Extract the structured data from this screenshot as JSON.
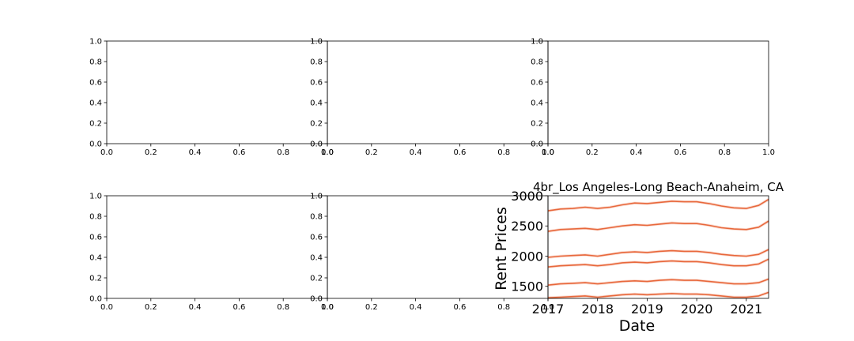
{
  "chart_data": [
    {
      "type": "line",
      "empty": true,
      "xlim": [
        0,
        1
      ],
      "ylim": [
        0,
        1
      ],
      "xticks": [
        "0.0",
        "0.2",
        "0.4",
        "0.6",
        "0.8",
        "1.0"
      ],
      "yticks": [
        "0.0",
        "0.2",
        "0.4",
        "0.6",
        "0.8",
        "1.0"
      ]
    },
    {
      "type": "line",
      "empty": true,
      "xlim": [
        0,
        1
      ],
      "ylim": [
        0,
        1
      ],
      "xticks": [
        "0.0",
        "0.2",
        "0.4",
        "0.6",
        "0.8",
        "1.0"
      ],
      "yticks": [
        "0.0",
        "0.2",
        "0.4",
        "0.6",
        "0.8",
        "1.0"
      ]
    },
    {
      "type": "line",
      "empty": true,
      "xlim": [
        0,
        1
      ],
      "ylim": [
        0,
        1
      ],
      "xticks": [
        "0.0",
        "0.2",
        "0.4",
        "0.6",
        "0.8",
        "1.0"
      ],
      "yticks": [
        "0.0",
        "0.2",
        "0.4",
        "0.6",
        "0.8",
        "1.0"
      ]
    },
    {
      "type": "line",
      "empty": true,
      "xlim": [
        0,
        1
      ],
      "ylim": [
        0,
        1
      ],
      "xticks": [
        "0.0",
        "0.2",
        "0.4",
        "0.6",
        "0.8",
        "1.0"
      ],
      "yticks": [
        "0.0",
        "0.2",
        "0.4",
        "0.6",
        "0.8",
        "1.0"
      ]
    },
    {
      "type": "line",
      "empty": true,
      "xlim": [
        0,
        1
      ],
      "ylim": [
        0,
        1
      ],
      "xticks": [
        "0.0",
        "0.2",
        "0.4",
        "0.6",
        "0.8",
        "1.0"
      ],
      "yticks": [
        "0.0",
        "0.2",
        "0.4",
        "0.6",
        "0.8",
        "1.0"
      ]
    },
    {
      "type": "line",
      "title": "4br_Los Angeles-Long Beach-Anaheim, CA",
      "xlabel": "Date",
      "ylabel": "Rent Prices",
      "xlim": [
        2017.0,
        2021.45
      ],
      "ylim": [
        1300,
        3000
      ],
      "xticks": [
        2017,
        2018,
        2019,
        2020,
        2021
      ],
      "xtick_labels": [
        "2017",
        "2018",
        "2019",
        "2020",
        "2021"
      ],
      "yticks": [
        1500,
        2000,
        2500,
        3000
      ],
      "ytick_labels": [
        "1500",
        "2000",
        "2500",
        "3000"
      ],
      "grid": false,
      "line_color": "#e8683c",
      "x": [
        2017.0,
        2017.25,
        2017.5,
        2017.75,
        2018.0,
        2018.25,
        2018.5,
        2018.75,
        2019.0,
        2019.25,
        2019.5,
        2019.75,
        2020.0,
        2020.25,
        2020.5,
        2020.75,
        2021.0,
        2021.25,
        2021.45
      ],
      "series": [
        {
          "values": [
            2750,
            2780,
            2790,
            2810,
            2790,
            2810,
            2850,
            2880,
            2870,
            2890,
            2910,
            2900,
            2900,
            2870,
            2830,
            2800,
            2790,
            2840,
            2940
          ]
        },
        {
          "values": [
            2410,
            2440,
            2450,
            2460,
            2440,
            2470,
            2500,
            2520,
            2510,
            2530,
            2550,
            2540,
            2540,
            2510,
            2470,
            2450,
            2440,
            2480,
            2580
          ]
        },
        {
          "values": [
            1980,
            2000,
            2010,
            2020,
            2000,
            2030,
            2060,
            2070,
            2060,
            2080,
            2090,
            2080,
            2080,
            2060,
            2030,
            2010,
            2000,
            2030,
            2110
          ]
        },
        {
          "values": [
            1820,
            1840,
            1850,
            1860,
            1840,
            1860,
            1890,
            1900,
            1890,
            1910,
            1920,
            1910,
            1910,
            1890,
            1860,
            1840,
            1840,
            1870,
            1950
          ]
        },
        {
          "values": [
            1520,
            1540,
            1550,
            1560,
            1540,
            1560,
            1580,
            1590,
            1580,
            1600,
            1610,
            1600,
            1600,
            1580,
            1560,
            1540,
            1540,
            1560,
            1620
          ]
        },
        {
          "values": [
            1310,
            1320,
            1330,
            1340,
            1320,
            1340,
            1360,
            1370,
            1360,
            1370,
            1380,
            1370,
            1370,
            1360,
            1340,
            1320,
            1320,
            1340,
            1400
          ]
        }
      ]
    }
  ]
}
